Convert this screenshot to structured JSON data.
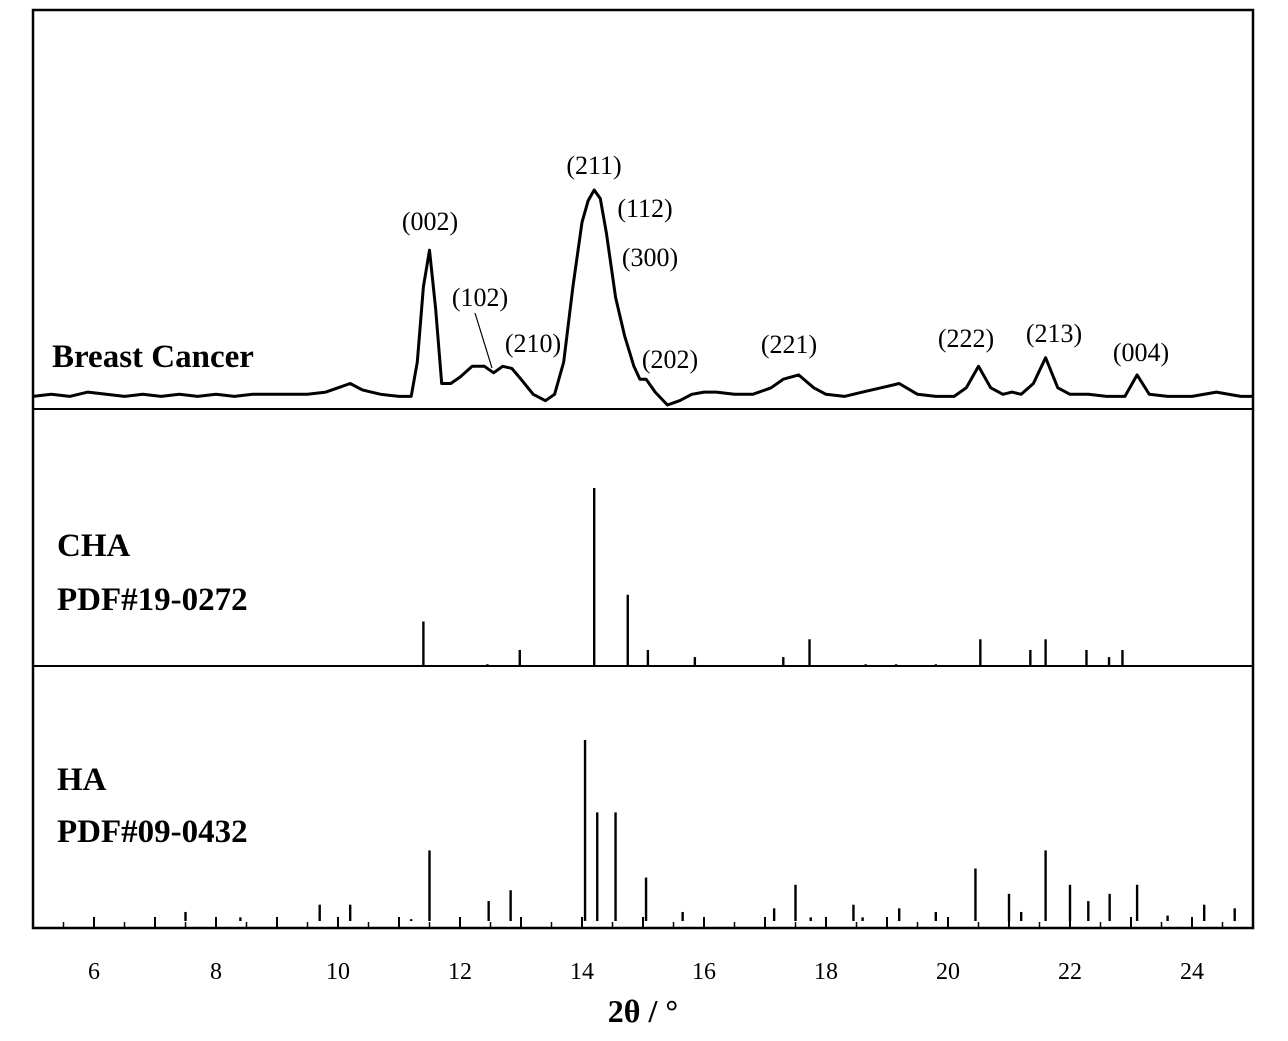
{
  "chart_data": {
    "type": "line",
    "xlabel": "2θ / °",
    "xlim": [
      5,
      25
    ],
    "xticks": [
      6,
      8,
      10,
      12,
      14,
      16,
      18,
      20,
      22,
      24
    ],
    "panels": [
      {
        "name": "Breast Cancer",
        "type": "line",
        "series": [
          {
            "name": "Breast Cancer",
            "x": [
              5.0,
              5.3,
              5.6,
              5.9,
              6.2,
              6.5,
              6.8,
              7.1,
              7.4,
              7.7,
              8.0,
              8.3,
              8.6,
              8.9,
              9.2,
              9.5,
              9.8,
              10.0,
              10.2,
              10.4,
              10.7,
              11.0,
              11.2,
              11.3,
              11.4,
              11.5,
              11.6,
              11.7,
              11.85,
              12.0,
              12.2,
              12.4,
              12.55,
              12.7,
              12.85,
              13.0,
              13.2,
              13.4,
              13.55,
              13.7,
              13.85,
              14.0,
              14.1,
              14.2,
              14.3,
              14.4,
              14.55,
              14.7,
              14.85,
              14.95,
              15.05,
              15.2,
              15.4,
              15.6,
              15.8,
              16.0,
              16.2,
              16.5,
              16.8,
              17.1,
              17.3,
              17.55,
              17.8,
              18.0,
              18.3,
              18.6,
              18.9,
              19.2,
              19.5,
              19.8,
              20.1,
              20.3,
              20.5,
              20.7,
              20.9,
              21.05,
              21.2,
              21.4,
              21.6,
              21.8,
              22.0,
              22.3,
              22.6,
              22.9,
              23.1,
              23.3,
              23.6,
              24.0,
              24.4,
              24.8,
              25.0
            ],
            "y": [
              0.04,
              0.05,
              0.04,
              0.06,
              0.05,
              0.04,
              0.05,
              0.04,
              0.05,
              0.04,
              0.05,
              0.04,
              0.05,
              0.05,
              0.05,
              0.05,
              0.06,
              0.08,
              0.1,
              0.07,
              0.05,
              0.04,
              0.04,
              0.2,
              0.55,
              0.72,
              0.45,
              0.1,
              0.1,
              0.13,
              0.18,
              0.18,
              0.15,
              0.18,
              0.17,
              0.12,
              0.05,
              0.02,
              0.05,
              0.2,
              0.55,
              0.85,
              0.95,
              1.0,
              0.96,
              0.8,
              0.5,
              0.32,
              0.18,
              0.12,
              0.12,
              0.06,
              0.0,
              0.02,
              0.05,
              0.06,
              0.06,
              0.05,
              0.05,
              0.08,
              0.12,
              0.14,
              0.08,
              0.05,
              0.04,
              0.06,
              0.08,
              0.1,
              0.05,
              0.04,
              0.04,
              0.08,
              0.18,
              0.08,
              0.05,
              0.06,
              0.05,
              0.1,
              0.22,
              0.08,
              0.05,
              0.05,
              0.04,
              0.04,
              0.14,
              0.05,
              0.04,
              0.04,
              0.06,
              0.04,
              0.04
            ]
          }
        ],
        "annotations": [
          {
            "text": "(002)",
            "x": 11.5
          },
          {
            "text": "(102)",
            "x": 12.5
          },
          {
            "text": "(210)",
            "x": 12.8
          },
          {
            "text": "(211)",
            "x": 14.2
          },
          {
            "text": "(112)",
            "x": 14.2
          },
          {
            "text": "(300)",
            "x": 14.2
          },
          {
            "text": "(202)",
            "x": 15.0
          },
          {
            "text": "(221)",
            "x": 17.55
          },
          {
            "text": "(222)",
            "x": 20.5
          },
          {
            "text": "(213)",
            "x": 21.6
          },
          {
            "text": "(004)",
            "x": 23.1
          }
        ]
      },
      {
        "name": "CHA",
        "name2": "PDF#19-0272",
        "type": "bar",
        "series": [
          {
            "name": "CHA PDF#19-0272",
            "x": [
              11.4,
              12.45,
              12.98,
              14.2,
              14.75,
              15.08,
              15.85,
              17.3,
              17.73,
              18.65,
              19.15,
              19.8,
              20.53,
              21.35,
              21.6,
              22.27,
              22.64,
              22.86
            ],
            "y": [
              0.25,
              0.01,
              0.09,
              1.0,
              0.4,
              0.09,
              0.05,
              0.05,
              0.15,
              0.01,
              0.01,
              0.01,
              0.15,
              0.09,
              0.15,
              0.09,
              0.05,
              0.09
            ]
          }
        ]
      },
      {
        "name": "HA",
        "name2": "PDF#09-0432",
        "type": "bar",
        "series": [
          {
            "name": "HA PDF#09-0432",
            "x": [
              7.5,
              8.4,
              9.7,
              10.2,
              11.2,
              11.5,
              12.47,
              12.83,
              14.05,
              14.25,
              14.55,
              15.05,
              15.65,
              17.15,
              17.5,
              17.75,
              18.45,
              18.6,
              19.2,
              19.8,
              20.45,
              21.0,
              21.2,
              21.6,
              22.0,
              22.3,
              22.65,
              23.1,
              23.6,
              24.2,
              24.7
            ],
            "y": [
              0.05,
              0.02,
              0.09,
              0.09,
              0.01,
              0.39,
              0.11,
              0.17,
              1.0,
              0.6,
              0.6,
              0.24,
              0.05,
              0.07,
              0.2,
              0.02,
              0.09,
              0.02,
              0.07,
              0.05,
              0.29,
              0.15,
              0.05,
              0.39,
              0.2,
              0.11,
              0.15,
              0.2,
              0.03,
              0.09,
              0.07
            ]
          }
        ]
      }
    ]
  }
}
